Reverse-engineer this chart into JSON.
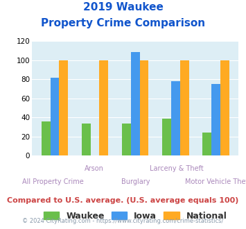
{
  "title_line1": "2019 Waukee",
  "title_line2": "Property Crime Comparison",
  "categories": [
    "All Property Crime",
    "Arson",
    "Burglary",
    "Larceny & Theft",
    "Motor Vehicle Theft"
  ],
  "waukee": [
    36,
    34,
    34,
    39,
    24
  ],
  "iowa": [
    82,
    0,
    109,
    78,
    75
  ],
  "national": [
    100,
    100,
    100,
    100,
    100
  ],
  "waukee_color": "#6abf4b",
  "iowa_color": "#4499ee",
  "national_color": "#ffaa22",
  "ylim": [
    0,
    120
  ],
  "yticks": [
    0,
    20,
    40,
    60,
    80,
    100,
    120
  ],
  "xlabel_color": "#aa88bb",
  "title_color": "#1155cc",
  "bg_color": "#ddeef5",
  "legend_labels": [
    "Waukee",
    "Iowa",
    "National"
  ],
  "footnote": "Compared to U.S. average. (U.S. average equals 100)",
  "copyright": "© 2024 CityRating.com - https://www.cityrating.com/crime-statistics/",
  "footnote_color": "#cc4444",
  "copyright_color": "#8899aa",
  "x_label_rows": [
    [
      "",
      "Arson",
      "",
      "Larceny & Theft",
      ""
    ],
    [
      "All Property Crime",
      "",
      "Burglary",
      "",
      "Motor Vehicle Theft"
    ]
  ]
}
